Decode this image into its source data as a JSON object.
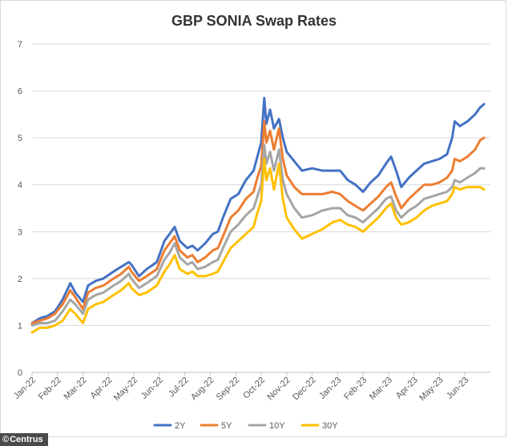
{
  "chart_data": {
    "type": "line",
    "title": "GBP SONIA Swap Rates",
    "xlabel": "",
    "ylabel": "",
    "ylim": [
      0,
      7
    ],
    "yticks": [
      0,
      1,
      2,
      3,
      4,
      5,
      6,
      7
    ],
    "grid": true,
    "legend_position": "bottom",
    "x_unit": "months since Jan-22",
    "x_range": [
      0,
      18
    ],
    "categories": [
      "Jan-22",
      "Feb-22",
      "Mar-22",
      "Apr-22",
      "May-22",
      "Jun-22",
      "Jul-22",
      "Aug-22",
      "Sep-22",
      "Oct-22",
      "Nov-22",
      "Dec-22",
      "Jan-23",
      "Feb-23",
      "Mar-23",
      "Apr-23",
      "May-23",
      "Jun-23"
    ],
    "series": [
      {
        "name": "2Y",
        "color": "#4472C4",
        "points": [
          [
            0,
            1.05
          ],
          [
            0.3,
            1.15
          ],
          [
            0.6,
            1.2
          ],
          [
            0.9,
            1.3
          ],
          [
            1.2,
            1.55
          ],
          [
            1.5,
            1.9
          ],
          [
            1.7,
            1.7
          ],
          [
            2.0,
            1.5
          ],
          [
            2.2,
            1.85
          ],
          [
            2.5,
            1.95
          ],
          [
            2.8,
            2.0
          ],
          [
            3.2,
            2.15
          ],
          [
            3.5,
            2.25
          ],
          [
            3.8,
            2.35
          ],
          [
            3.9,
            2.3
          ],
          [
            4.2,
            2.05
          ],
          [
            4.5,
            2.2
          ],
          [
            4.9,
            2.35
          ],
          [
            5.2,
            2.8
          ],
          [
            5.4,
            2.95
          ],
          [
            5.6,
            3.1
          ],
          [
            5.8,
            2.8
          ],
          [
            6.1,
            2.65
          ],
          [
            6.3,
            2.7
          ],
          [
            6.5,
            2.6
          ],
          [
            6.8,
            2.75
          ],
          [
            7.1,
            2.95
          ],
          [
            7.3,
            3.0
          ],
          [
            7.5,
            3.3
          ],
          [
            7.8,
            3.7
          ],
          [
            8.1,
            3.8
          ],
          [
            8.4,
            4.1
          ],
          [
            8.7,
            4.3
          ],
          [
            8.85,
            4.6
          ],
          [
            9.0,
            4.9
          ],
          [
            9.12,
            5.85
          ],
          [
            9.2,
            5.3
          ],
          [
            9.35,
            5.6
          ],
          [
            9.5,
            5.2
          ],
          [
            9.7,
            5.4
          ],
          [
            9.85,
            5.0
          ],
          [
            10.0,
            4.7
          ],
          [
            10.3,
            4.5
          ],
          [
            10.6,
            4.3
          ],
          [
            11.0,
            4.35
          ],
          [
            11.4,
            4.3
          ],
          [
            11.8,
            4.3
          ],
          [
            12.1,
            4.3
          ],
          [
            12.4,
            4.1
          ],
          [
            12.7,
            4.0
          ],
          [
            13.0,
            3.85
          ],
          [
            13.3,
            4.05
          ],
          [
            13.6,
            4.2
          ],
          [
            13.9,
            4.45
          ],
          [
            14.1,
            4.6
          ],
          [
            14.3,
            4.3
          ],
          [
            14.5,
            3.95
          ],
          [
            14.8,
            4.15
          ],
          [
            15.1,
            4.3
          ],
          [
            15.4,
            4.45
          ],
          [
            15.7,
            4.5
          ],
          [
            16.0,
            4.55
          ],
          [
            16.3,
            4.65
          ],
          [
            16.5,
            5.0
          ],
          [
            16.6,
            5.35
          ],
          [
            16.8,
            5.25
          ],
          [
            17.1,
            5.35
          ],
          [
            17.4,
            5.5
          ],
          [
            17.6,
            5.65
          ],
          [
            17.75,
            5.72
          ]
        ]
      },
      {
        "name": "5Y",
        "color": "#ED7D31",
        "points": [
          [
            0,
            1.05
          ],
          [
            0.3,
            1.1
          ],
          [
            0.6,
            1.15
          ],
          [
            0.9,
            1.25
          ],
          [
            1.2,
            1.45
          ],
          [
            1.5,
            1.75
          ],
          [
            1.7,
            1.6
          ],
          [
            2.0,
            1.35
          ],
          [
            2.2,
            1.7
          ],
          [
            2.5,
            1.8
          ],
          [
            2.8,
            1.85
          ],
          [
            3.2,
            2.0
          ],
          [
            3.5,
            2.1
          ],
          [
            3.8,
            2.25
          ],
          [
            3.9,
            2.15
          ],
          [
            4.2,
            1.95
          ],
          [
            4.5,
            2.05
          ],
          [
            4.9,
            2.2
          ],
          [
            5.2,
            2.6
          ],
          [
            5.4,
            2.75
          ],
          [
            5.6,
            2.9
          ],
          [
            5.8,
            2.6
          ],
          [
            6.1,
            2.45
          ],
          [
            6.3,
            2.5
          ],
          [
            6.5,
            2.35
          ],
          [
            6.8,
            2.45
          ],
          [
            7.1,
            2.6
          ],
          [
            7.3,
            2.65
          ],
          [
            7.5,
            2.9
          ],
          [
            7.8,
            3.3
          ],
          [
            8.1,
            3.45
          ],
          [
            8.4,
            3.7
          ],
          [
            8.7,
            3.85
          ],
          [
            8.85,
            4.15
          ],
          [
            9.0,
            4.4
          ],
          [
            9.12,
            5.35
          ],
          [
            9.2,
            4.9
          ],
          [
            9.35,
            5.15
          ],
          [
            9.5,
            4.75
          ],
          [
            9.7,
            5.2
          ],
          [
            9.85,
            4.55
          ],
          [
            10.0,
            4.2
          ],
          [
            10.3,
            3.95
          ],
          [
            10.6,
            3.8
          ],
          [
            11.0,
            3.8
          ],
          [
            11.4,
            3.8
          ],
          [
            11.8,
            3.85
          ],
          [
            12.1,
            3.8
          ],
          [
            12.4,
            3.65
          ],
          [
            12.7,
            3.55
          ],
          [
            13.0,
            3.45
          ],
          [
            13.3,
            3.6
          ],
          [
            13.6,
            3.75
          ],
          [
            13.9,
            3.95
          ],
          [
            14.1,
            4.05
          ],
          [
            14.3,
            3.75
          ],
          [
            14.5,
            3.5
          ],
          [
            14.8,
            3.7
          ],
          [
            15.1,
            3.85
          ],
          [
            15.4,
            4.0
          ],
          [
            15.7,
            4.0
          ],
          [
            16.0,
            4.05
          ],
          [
            16.3,
            4.15
          ],
          [
            16.5,
            4.3
          ],
          [
            16.6,
            4.55
          ],
          [
            16.8,
            4.5
          ],
          [
            17.1,
            4.6
          ],
          [
            17.4,
            4.75
          ],
          [
            17.6,
            4.95
          ],
          [
            17.75,
            5.0
          ]
        ]
      },
      {
        "name": "10Y",
        "color": "#A5A5A5",
        "points": [
          [
            0,
            1.0
          ],
          [
            0.3,
            1.05
          ],
          [
            0.6,
            1.05
          ],
          [
            0.9,
            1.1
          ],
          [
            1.2,
            1.3
          ],
          [
            1.5,
            1.55
          ],
          [
            1.7,
            1.45
          ],
          [
            2.0,
            1.25
          ],
          [
            2.2,
            1.55
          ],
          [
            2.5,
            1.65
          ],
          [
            2.8,
            1.7
          ],
          [
            3.2,
            1.85
          ],
          [
            3.5,
            1.95
          ],
          [
            3.8,
            2.1
          ],
          [
            3.9,
            2.0
          ],
          [
            4.2,
            1.8
          ],
          [
            4.5,
            1.9
          ],
          [
            4.9,
            2.05
          ],
          [
            5.2,
            2.4
          ],
          [
            5.4,
            2.55
          ],
          [
            5.6,
            2.75
          ],
          [
            5.8,
            2.45
          ],
          [
            6.1,
            2.3
          ],
          [
            6.3,
            2.35
          ],
          [
            6.5,
            2.2
          ],
          [
            6.8,
            2.25
          ],
          [
            7.1,
            2.35
          ],
          [
            7.3,
            2.4
          ],
          [
            7.5,
            2.65
          ],
          [
            7.8,
            3.0
          ],
          [
            8.1,
            3.15
          ],
          [
            8.4,
            3.35
          ],
          [
            8.7,
            3.5
          ],
          [
            8.85,
            3.75
          ],
          [
            9.0,
            4.0
          ],
          [
            9.12,
            4.85
          ],
          [
            9.2,
            4.45
          ],
          [
            9.35,
            4.7
          ],
          [
            9.5,
            4.3
          ],
          [
            9.7,
            4.75
          ],
          [
            9.85,
            4.1
          ],
          [
            10.0,
            3.8
          ],
          [
            10.3,
            3.5
          ],
          [
            10.6,
            3.3
          ],
          [
            11.0,
            3.35
          ],
          [
            11.4,
            3.45
          ],
          [
            11.8,
            3.5
          ],
          [
            12.1,
            3.5
          ],
          [
            12.4,
            3.35
          ],
          [
            12.7,
            3.3
          ],
          [
            13.0,
            3.2
          ],
          [
            13.3,
            3.35
          ],
          [
            13.6,
            3.5
          ],
          [
            13.9,
            3.7
          ],
          [
            14.1,
            3.75
          ],
          [
            14.3,
            3.45
          ],
          [
            14.5,
            3.3
          ],
          [
            14.8,
            3.45
          ],
          [
            15.1,
            3.55
          ],
          [
            15.4,
            3.7
          ],
          [
            15.7,
            3.75
          ],
          [
            16.0,
            3.8
          ],
          [
            16.3,
            3.85
          ],
          [
            16.5,
            3.95
          ],
          [
            16.6,
            4.1
          ],
          [
            16.8,
            4.05
          ],
          [
            17.1,
            4.15
          ],
          [
            17.4,
            4.25
          ],
          [
            17.6,
            4.35
          ],
          [
            17.75,
            4.35
          ]
        ]
      },
      {
        "name": "30Y",
        "color": "#FFC000",
        "points": [
          [
            0,
            0.85
          ],
          [
            0.3,
            0.95
          ],
          [
            0.6,
            0.95
          ],
          [
            0.9,
            1.0
          ],
          [
            1.2,
            1.1
          ],
          [
            1.5,
            1.35
          ],
          [
            1.7,
            1.25
          ],
          [
            2.0,
            1.05
          ],
          [
            2.2,
            1.35
          ],
          [
            2.5,
            1.45
          ],
          [
            2.8,
            1.5
          ],
          [
            3.2,
            1.65
          ],
          [
            3.5,
            1.75
          ],
          [
            3.8,
            1.9
          ],
          [
            3.9,
            1.8
          ],
          [
            4.2,
            1.65
          ],
          [
            4.5,
            1.7
          ],
          [
            4.9,
            1.85
          ],
          [
            5.2,
            2.15
          ],
          [
            5.4,
            2.3
          ],
          [
            5.6,
            2.5
          ],
          [
            5.8,
            2.2
          ],
          [
            6.1,
            2.1
          ],
          [
            6.3,
            2.15
          ],
          [
            6.5,
            2.05
          ],
          [
            6.8,
            2.05
          ],
          [
            7.1,
            2.1
          ],
          [
            7.3,
            2.15
          ],
          [
            7.5,
            2.35
          ],
          [
            7.8,
            2.65
          ],
          [
            8.1,
            2.8
          ],
          [
            8.4,
            2.95
          ],
          [
            8.7,
            3.1
          ],
          [
            8.85,
            3.4
          ],
          [
            9.0,
            3.65
          ],
          [
            9.12,
            4.55
          ],
          [
            9.2,
            4.1
          ],
          [
            9.35,
            4.35
          ],
          [
            9.5,
            3.9
          ],
          [
            9.7,
            4.45
          ],
          [
            9.85,
            3.7
          ],
          [
            10.0,
            3.3
          ],
          [
            10.3,
            3.05
          ],
          [
            10.6,
            2.85
          ],
          [
            11.0,
            2.95
          ],
          [
            11.4,
            3.05
          ],
          [
            11.8,
            3.2
          ],
          [
            12.1,
            3.25
          ],
          [
            12.4,
            3.15
          ],
          [
            12.7,
            3.1
          ],
          [
            13.0,
            3.0
          ],
          [
            13.3,
            3.15
          ],
          [
            13.6,
            3.3
          ],
          [
            13.9,
            3.5
          ],
          [
            14.1,
            3.6
          ],
          [
            14.3,
            3.3
          ],
          [
            14.5,
            3.15
          ],
          [
            14.8,
            3.2
          ],
          [
            15.1,
            3.3
          ],
          [
            15.4,
            3.45
          ],
          [
            15.7,
            3.55
          ],
          [
            16.0,
            3.6
          ],
          [
            16.3,
            3.65
          ],
          [
            16.5,
            3.8
          ],
          [
            16.6,
            3.95
          ],
          [
            16.8,
            3.9
          ],
          [
            17.1,
            3.95
          ],
          [
            17.4,
            3.95
          ],
          [
            17.6,
            3.95
          ],
          [
            17.75,
            3.9
          ]
        ]
      }
    ]
  },
  "credit": {
    "symbol": "©",
    "text": "Centrus"
  }
}
